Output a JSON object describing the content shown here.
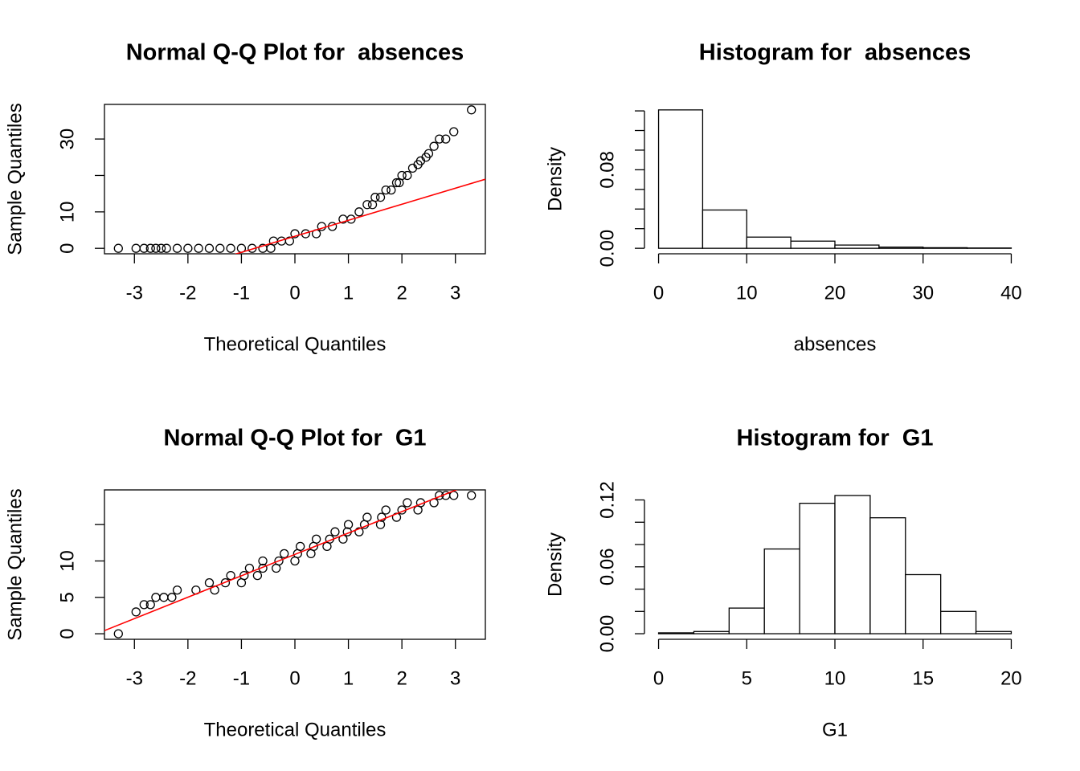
{
  "chart_data": [
    {
      "type": "qq",
      "title": "Normal Q-Q Plot for  absences",
      "xlabel": "Theoretical Quantiles",
      "ylabel": "Sample Quantiles",
      "x": [
        -3.3,
        -2.97,
        -2.82,
        -2.7,
        -2.6,
        -2.5,
        -2.4,
        -2.2,
        -2.0,
        -1.8,
        -1.6,
        -1.4,
        -1.2,
        -1.0,
        -0.8,
        -0.6,
        -0.45,
        -0.4,
        -0.25,
        -0.1,
        0.0,
        0.2,
        0.4,
        0.5,
        0.7,
        0.9,
        1.05,
        1.2,
        1.35,
        1.45,
        1.5,
        1.6,
        1.7,
        1.8,
        1.9,
        1.95,
        2.0,
        2.1,
        2.2,
        2.3,
        2.35,
        2.45,
        2.5,
        2.6,
        2.7,
        2.82,
        2.97,
        3.3
      ],
      "y": [
        0,
        0,
        0,
        0,
        0,
        0,
        0,
        0,
        0,
        0,
        0,
        0,
        0,
        0,
        0,
        0,
        0,
        2,
        2,
        2,
        4,
        4,
        4,
        6,
        6,
        8,
        8,
        10,
        12,
        12,
        14,
        14,
        16,
        16,
        18,
        18,
        20,
        20,
        22,
        23,
        24,
        25,
        26,
        28,
        30,
        30,
        32,
        38
      ],
      "xlim": [
        -3.56,
        3.56
      ],
      "ylim": [
        -1.5,
        39.5
      ],
      "xticks": [
        -3,
        -2,
        -1,
        0,
        1,
        2,
        3
      ],
      "yticks": [
        0,
        10,
        30
      ],
      "yticks_unlabeled": [
        20
      ],
      "point_color": "#000000",
      "qqline": {
        "intercept": 3.3,
        "slope": 4.4,
        "color": "#ff0000"
      },
      "box": true
    },
    {
      "type": "histogram",
      "title": "Histogram for  absences",
      "xlabel": "absences",
      "ylabel": "Density",
      "bins": [
        0,
        5,
        10,
        15,
        20,
        25,
        30,
        35,
        40
      ],
      "values": [
        0.141,
        0.039,
        0.0114,
        0.0073,
        0.0033,
        0.0012,
        0.0006,
        0.0003
      ],
      "xlim": [
        -1.6,
        41.6
      ],
      "ylim": [
        -0.0056,
        0.1466
      ],
      "xticks": [
        0,
        10,
        20,
        30,
        40
      ],
      "yticks": [
        {
          "value": 0,
          "label": "0.00"
        },
        0.08
      ],
      "yticks_unlabeled": [
        0.02,
        0.04,
        0.06,
        0.1,
        0.12,
        0.14
      ],
      "bar_color": "#ffffff"
    },
    {
      "type": "qq",
      "title": "Normal Q-Q Plot for  G1",
      "xlabel": "Theoretical Quantiles",
      "ylabel": "Sample Quantiles",
      "x": [
        -3.3,
        -2.97,
        -2.82,
        -2.7,
        -2.6,
        -2.45,
        -2.3,
        -2.2,
        -1.85,
        -1.5,
        -1.6,
        -1.3,
        -1.0,
        -1.2,
        -0.95,
        -0.7,
        -0.85,
        -0.6,
        -0.35,
        -0.6,
        -0.3,
        0.0,
        -0.2,
        0.05,
        0.3,
        0.1,
        0.35,
        0.6,
        0.4,
        0.65,
        0.9,
        0.75,
        0.98,
        1.2,
        1.0,
        1.3,
        1.6,
        1.35,
        1.62,
        1.9,
        1.7,
        2.0,
        2.3,
        2.1,
        2.35,
        2.6,
        2.7,
        2.82,
        2.97,
        3.3
      ],
      "y": [
        0,
        3,
        4,
        4,
        5,
        5,
        5,
        6,
        6,
        6,
        7,
        7,
        7,
        8,
        8,
        8,
        9,
        9,
        9,
        10,
        10,
        10,
        11,
        11,
        11,
        12,
        12,
        12,
        13,
        13,
        13,
        14,
        14,
        14,
        15,
        15,
        15,
        16,
        16,
        16,
        17,
        17,
        17,
        18,
        18,
        18,
        19,
        19,
        19,
        19
      ],
      "xlim": [
        -3.56,
        3.56
      ],
      "ylim": [
        -0.76,
        19.76
      ],
      "xticks": [
        -3,
        -2,
        -1,
        0,
        1,
        2,
        3
      ],
      "yticks": [
        0,
        5,
        10
      ],
      "yticks_unlabeled": [
        15
      ],
      "point_color": "#000000",
      "qqline": {
        "intercept": 10.9,
        "slope": 2.94,
        "color": "#ff0000"
      },
      "box": true
    },
    {
      "type": "histogram",
      "title": "Histogram for  G1",
      "xlabel": "G1",
      "ylabel": "Density",
      "bins": [
        0,
        2,
        4,
        6,
        8,
        10,
        12,
        14,
        16,
        18,
        20
      ],
      "values": [
        0.0008,
        0.002,
        0.023,
        0.076,
        0.117,
        0.124,
        0.104,
        0.053,
        0.02,
        0.002
      ],
      "xlim": [
        -0.8,
        20.8
      ],
      "ylim": [
        -0.005,
        0.129
      ],
      "xticks": [
        0,
        5,
        10,
        15,
        20
      ],
      "yticks": [
        {
          "value": 0,
          "label": "0.00"
        },
        0.06,
        0.12
      ],
      "yticks_unlabeled": [
        0.02,
        0.04,
        0.08,
        0.1
      ],
      "bar_color": "#ffffff"
    }
  ]
}
